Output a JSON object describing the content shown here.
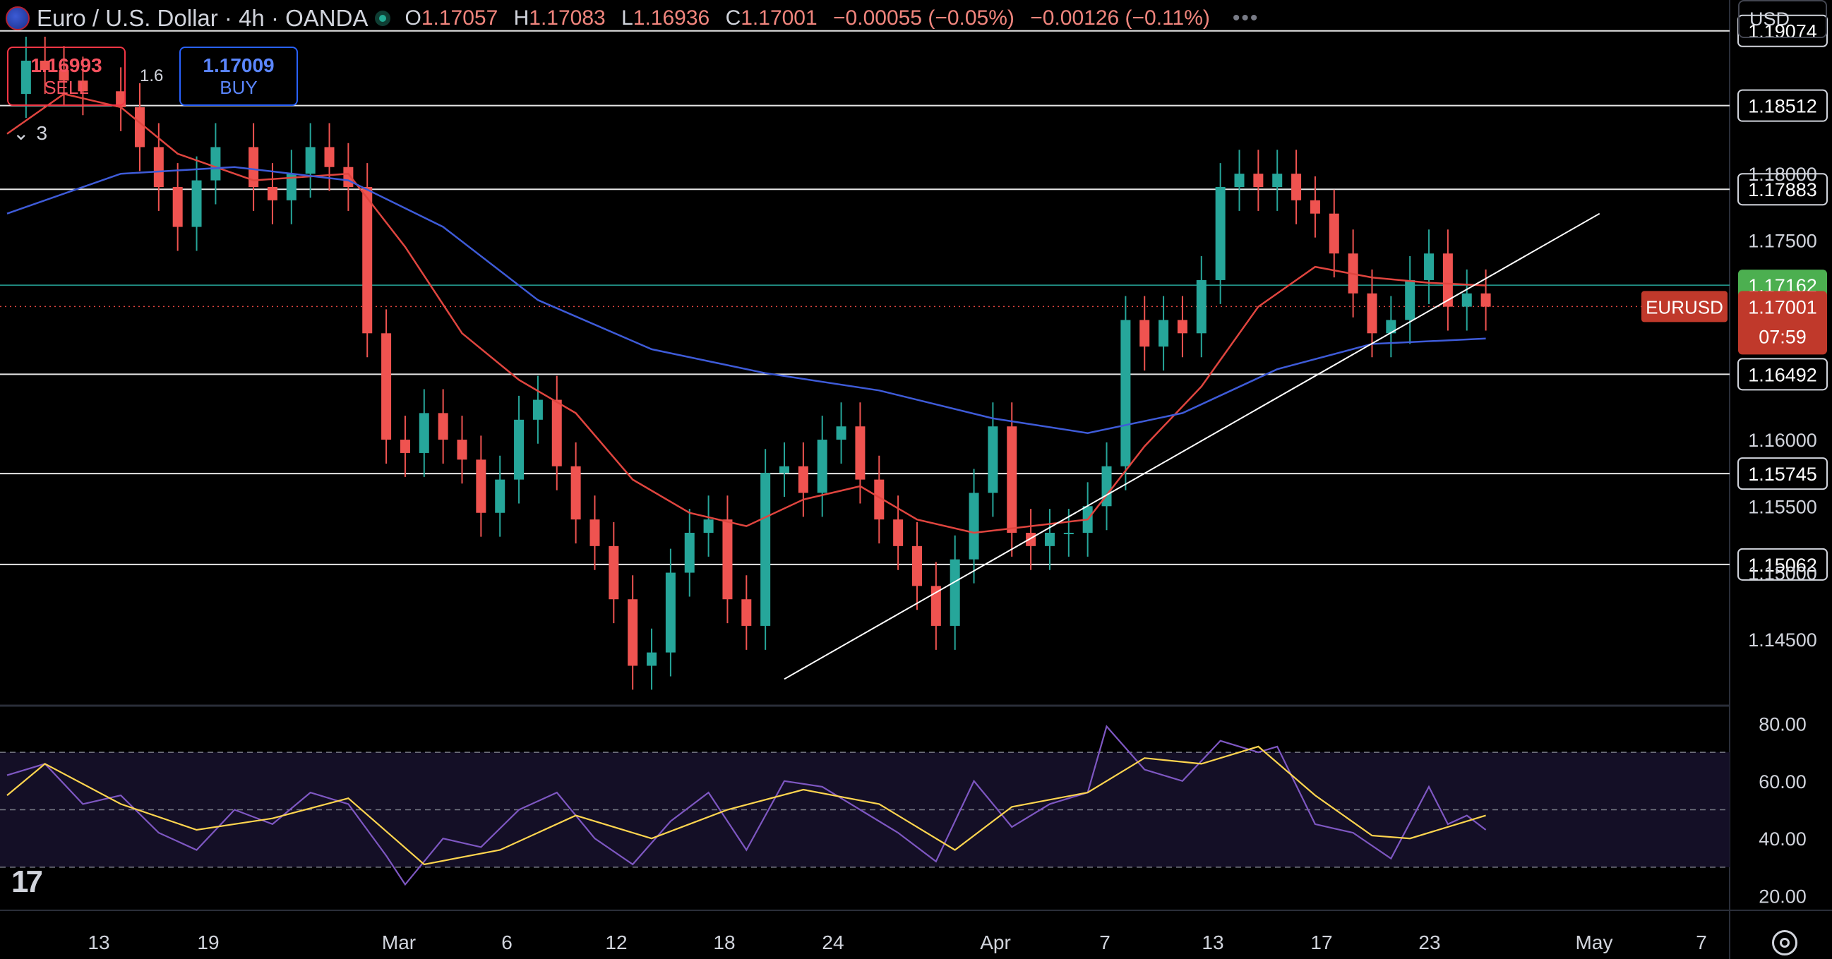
{
  "header": {
    "symbol_title": "Euro / U.S. Dollar · 4h · OANDA",
    "ohlc": [
      {
        "k": "O",
        "v": "1.17057"
      },
      {
        "k": "H",
        "v": "1.17083"
      },
      {
        "k": "L",
        "v": "1.16936"
      },
      {
        "k": "C",
        "v": "1.17001"
      }
    ],
    "change": "−0.00055 (−0.05%)",
    "change2": "−0.00126 (−0.11%)",
    "more": "•••"
  },
  "trade": {
    "sell_price": "1.16993",
    "sell_label": "SELL",
    "buy_price": "1.17009",
    "buy_label": "BUY",
    "spread": "1.6"
  },
  "collapse_count": "3",
  "currency": "USD",
  "colors": {
    "up": "#26a69a",
    "down": "#ef5350",
    "ma_fast": "#e0453f",
    "ma_slow": "#3e5bd8",
    "rsi": "#7e57c2",
    "rsi_ma": "#ffd54f",
    "last_price": "#c0392b",
    "green_line": "#26a69a"
  },
  "chart_data": [
    {
      "type": "candlestick",
      "ylim": [
        1.14,
        1.192
      ],
      "price_ticks": [
        "1.14500",
        "1.15000",
        "1.15500",
        "1.16000",
        "1.17500",
        "1.18000"
      ],
      "time_ticks": [
        "13",
        "19",
        "Mar",
        "6",
        "12",
        "18",
        "24",
        "Apr",
        "7",
        "13",
        "17",
        "23",
        "May",
        "7"
      ],
      "horizontal_levels": [
        1.19074,
        1.18512,
        1.17883,
        1.16492,
        1.15745,
        1.15062
      ],
      "level_labels": [
        "1.19074",
        "1.18512",
        "1.17883",
        "1.16492",
        "1.15745",
        "1.15062"
      ],
      "highlight_level": {
        "value": 1.17162,
        "label": "1.17162"
      },
      "last_price": {
        "value": 1.17001,
        "label": "1.17001",
        "countdown": "07:59",
        "symbol": "EURUSD"
      },
      "trendline": [
        {
          "date": "2025-03-23",
          "y": 1.142
        },
        {
          "date": "2025-05-05",
          "y": 1.177
        }
      ],
      "close_series": [
        {
          "date": "2025-02-10",
          "y": 1.186
        },
        {
          "date": "2025-02-11",
          "y": 1.1885
        },
        {
          "date": "2025-02-12",
          "y": 1.1878
        },
        {
          "date": "2025-02-13",
          "y": 1.187
        },
        {
          "date": "2025-02-14",
          "y": 1.1862
        },
        {
          "date": "2025-02-16",
          "y": 1.185
        },
        {
          "date": "2025-02-17",
          "y": 1.182
        },
        {
          "date": "2025-02-18",
          "y": 1.179
        },
        {
          "date": "2025-02-19",
          "y": 1.176
        },
        {
          "date": "2025-02-20",
          "y": 1.1795
        },
        {
          "date": "2025-02-21",
          "y": 1.182
        },
        {
          "date": "2025-02-23",
          "y": 1.179
        },
        {
          "date": "2025-02-24",
          "y": 1.178
        },
        {
          "date": "2025-02-25",
          "y": 1.18
        },
        {
          "date": "2025-02-26",
          "y": 1.182
        },
        {
          "date": "2025-02-27",
          "y": 1.1805
        },
        {
          "date": "2025-02-28",
          "y": 1.179
        },
        {
          "date": "2025-03-01",
          "y": 1.168
        },
        {
          "date": "2025-03-02",
          "y": 1.16
        },
        {
          "date": "2025-03-03",
          "y": 1.159
        },
        {
          "date": "2025-03-04",
          "y": 1.162
        },
        {
          "date": "2025-03-05",
          "y": 1.16
        },
        {
          "date": "2025-03-06",
          "y": 1.1585
        },
        {
          "date": "2025-03-07",
          "y": 1.1545
        },
        {
          "date": "2025-03-08",
          "y": 1.157
        },
        {
          "date": "2025-03-09",
          "y": 1.1615
        },
        {
          "date": "2025-03-10",
          "y": 1.163
        },
        {
          "date": "2025-03-11",
          "y": 1.158
        },
        {
          "date": "2025-03-12",
          "y": 1.154
        },
        {
          "date": "2025-03-13",
          "y": 1.152
        },
        {
          "date": "2025-03-14",
          "y": 1.148
        },
        {
          "date": "2025-03-15",
          "y": 1.143
        },
        {
          "date": "2025-03-16",
          "y": 1.144
        },
        {
          "date": "2025-03-17",
          "y": 1.15
        },
        {
          "date": "2025-03-18",
          "y": 1.153
        },
        {
          "date": "2025-03-19",
          "y": 1.154
        },
        {
          "date": "2025-03-20",
          "y": 1.148
        },
        {
          "date": "2025-03-21",
          "y": 1.146
        },
        {
          "date": "2025-03-22",
          "y": 1.1575
        },
        {
          "date": "2025-03-23",
          "y": 1.158
        },
        {
          "date": "2025-03-24",
          "y": 1.156
        },
        {
          "date": "2025-03-25",
          "y": 1.16
        },
        {
          "date": "2025-03-26",
          "y": 1.161
        },
        {
          "date": "2025-03-27",
          "y": 1.157
        },
        {
          "date": "2025-03-28",
          "y": 1.154
        },
        {
          "date": "2025-03-29",
          "y": 1.152
        },
        {
          "date": "2025-03-30",
          "y": 1.149
        },
        {
          "date": "2025-03-31",
          "y": 1.146
        },
        {
          "date": "2025-04-01",
          "y": 1.151
        },
        {
          "date": "2025-04-02",
          "y": 1.156
        },
        {
          "date": "2025-04-03",
          "y": 1.161
        },
        {
          "date": "2025-04-04",
          "y": 1.153
        },
        {
          "date": "2025-04-05",
          "y": 1.152
        },
        {
          "date": "2025-04-06",
          "y": 1.153
        },
        {
          "date": "2025-04-07",
          "y": 1.153
        },
        {
          "date": "2025-04-08",
          "y": 1.155
        },
        {
          "date": "2025-04-09",
          "y": 1.158
        },
        {
          "date": "2025-04-10",
          "y": 1.169
        },
        {
          "date": "2025-04-11",
          "y": 1.167
        },
        {
          "date": "2025-04-12",
          "y": 1.169
        },
        {
          "date": "2025-04-13",
          "y": 1.168
        },
        {
          "date": "2025-04-14",
          "y": 1.172
        },
        {
          "date": "2025-04-15",
          "y": 1.179
        },
        {
          "date": "2025-04-16",
          "y": 1.18
        },
        {
          "date": "2025-04-17",
          "y": 1.179
        },
        {
          "date": "2025-04-18",
          "y": 1.18
        },
        {
          "date": "2025-04-19",
          "y": 1.178
        },
        {
          "date": "2025-04-20",
          "y": 1.177
        },
        {
          "date": "2025-04-21",
          "y": 1.174
        },
        {
          "date": "2025-04-22",
          "y": 1.171
        },
        {
          "date": "2025-04-23",
          "y": 1.168
        },
        {
          "date": "2025-04-24",
          "y": 1.169
        },
        {
          "date": "2025-04-25",
          "y": 1.172
        },
        {
          "date": "2025-04-26",
          "y": 1.174
        },
        {
          "date": "2025-04-27",
          "y": 1.17
        },
        {
          "date": "2025-04-28",
          "y": 1.171
        },
        {
          "date": "2025-04-29",
          "y": 1.17
        }
      ],
      "ma_fast": [
        {
          "date": "2025-02-10",
          "y": 1.183
        },
        {
          "date": "2025-02-13",
          "y": 1.186
        },
        {
          "date": "2025-02-16",
          "y": 1.185
        },
        {
          "date": "2025-02-19",
          "y": 1.1815
        },
        {
          "date": "2025-02-23",
          "y": 1.1795
        },
        {
          "date": "2025-02-28",
          "y": 1.18
        },
        {
          "date": "2025-03-03",
          "y": 1.1745
        },
        {
          "date": "2025-03-06",
          "y": 1.168
        },
        {
          "date": "2025-03-09",
          "y": 1.1645
        },
        {
          "date": "2025-03-12",
          "y": 1.162
        },
        {
          "date": "2025-03-15",
          "y": 1.157
        },
        {
          "date": "2025-03-18",
          "y": 1.1545
        },
        {
          "date": "2025-03-21",
          "y": 1.1535
        },
        {
          "date": "2025-03-24",
          "y": 1.1555
        },
        {
          "date": "2025-03-27",
          "y": 1.1565
        },
        {
          "date": "2025-03-30",
          "y": 1.154
        },
        {
          "date": "2025-04-02",
          "y": 1.153
        },
        {
          "date": "2025-04-05",
          "y": 1.1535
        },
        {
          "date": "2025-04-08",
          "y": 1.154
        },
        {
          "date": "2025-04-11",
          "y": 1.1595
        },
        {
          "date": "2025-04-14",
          "y": 1.164
        },
        {
          "date": "2025-04-17",
          "y": 1.17
        },
        {
          "date": "2025-04-20",
          "y": 1.173
        },
        {
          "date": "2025-04-23",
          "y": 1.1722
        },
        {
          "date": "2025-04-26",
          "y": 1.1718
        },
        {
          "date": "2025-04-29",
          "y": 1.1716
        }
      ],
      "ma_slow": [
        {
          "date": "2025-02-10",
          "y": 1.177
        },
        {
          "date": "2025-02-16",
          "y": 1.18
        },
        {
          "date": "2025-02-22",
          "y": 1.1805
        },
        {
          "date": "2025-02-28",
          "y": 1.1795
        },
        {
          "date": "2025-03-05",
          "y": 1.176
        },
        {
          "date": "2025-03-10",
          "y": 1.1705
        },
        {
          "date": "2025-03-16",
          "y": 1.1668
        },
        {
          "date": "2025-03-22",
          "y": 1.165
        },
        {
          "date": "2025-03-28",
          "y": 1.1637
        },
        {
          "date": "2025-04-03",
          "y": 1.1616
        },
        {
          "date": "2025-04-08",
          "y": 1.1605
        },
        {
          "date": "2025-04-13",
          "y": 1.162
        },
        {
          "date": "2025-04-18",
          "y": 1.1653
        },
        {
          "date": "2025-04-23",
          "y": 1.1672
        },
        {
          "date": "2025-04-29",
          "y": 1.1676
        }
      ]
    },
    {
      "type": "line",
      "ylim": [
        15,
        85
      ],
      "ticks": [
        "80.00",
        "60.00",
        "40.00",
        "20.00"
      ],
      "band": [
        30,
        70
      ],
      "midline": 50,
      "rsi": [
        {
          "date": "2025-02-10",
          "y": 62
        },
        {
          "date": "2025-02-12",
          "y": 66
        },
        {
          "date": "2025-02-14",
          "y": 52
        },
        {
          "date": "2025-02-16",
          "y": 55
        },
        {
          "date": "2025-02-18",
          "y": 42
        },
        {
          "date": "2025-02-20",
          "y": 36
        },
        {
          "date": "2025-02-22",
          "y": 50
        },
        {
          "date": "2025-02-24",
          "y": 45
        },
        {
          "date": "2025-02-26",
          "y": 56
        },
        {
          "date": "2025-02-28",
          "y": 52
        },
        {
          "date": "2025-03-02",
          "y": 34
        },
        {
          "date": "2025-03-03",
          "y": 24
        },
        {
          "date": "2025-03-05",
          "y": 40
        },
        {
          "date": "2025-03-07",
          "y": 37
        },
        {
          "date": "2025-03-09",
          "y": 50
        },
        {
          "date": "2025-03-11",
          "y": 56
        },
        {
          "date": "2025-03-13",
          "y": 40
        },
        {
          "date": "2025-03-15",
          "y": 31
        },
        {
          "date": "2025-03-17",
          "y": 46
        },
        {
          "date": "2025-03-19",
          "y": 56
        },
        {
          "date": "2025-03-21",
          "y": 36
        },
        {
          "date": "2025-03-23",
          "y": 60
        },
        {
          "date": "2025-03-25",
          "y": 58
        },
        {
          "date": "2025-03-27",
          "y": 50
        },
        {
          "date": "2025-03-29",
          "y": 42
        },
        {
          "date": "2025-03-31",
          "y": 32
        },
        {
          "date": "2025-04-02",
          "y": 60
        },
        {
          "date": "2025-04-04",
          "y": 44
        },
        {
          "date": "2025-04-06",
          "y": 52
        },
        {
          "date": "2025-04-08",
          "y": 56
        },
        {
          "date": "2025-04-09",
          "y": 79
        },
        {
          "date": "2025-04-11",
          "y": 64
        },
        {
          "date": "2025-04-13",
          "y": 60
        },
        {
          "date": "2025-04-15",
          "y": 74
        },
        {
          "date": "2025-04-17",
          "y": 70
        },
        {
          "date": "2025-04-18",
          "y": 72
        },
        {
          "date": "2025-04-20",
          "y": 45
        },
        {
          "date": "2025-04-22",
          "y": 42
        },
        {
          "date": "2025-04-24",
          "y": 33
        },
        {
          "date": "2025-04-26",
          "y": 58
        },
        {
          "date": "2025-04-27",
          "y": 45
        },
        {
          "date": "2025-04-28",
          "y": 48
        },
        {
          "date": "2025-04-29",
          "y": 43
        }
      ],
      "rsi_ma": [
        {
          "date": "2025-02-10",
          "y": 55
        },
        {
          "date": "2025-02-12",
          "y": 66
        },
        {
          "date": "2025-02-16",
          "y": 52
        },
        {
          "date": "2025-02-20",
          "y": 43
        },
        {
          "date": "2025-02-24",
          "y": 47
        },
        {
          "date": "2025-02-28",
          "y": 54
        },
        {
          "date": "2025-03-04",
          "y": 31
        },
        {
          "date": "2025-03-08",
          "y": 36
        },
        {
          "date": "2025-03-12",
          "y": 48
        },
        {
          "date": "2025-03-16",
          "y": 40
        },
        {
          "date": "2025-03-20",
          "y": 50
        },
        {
          "date": "2025-03-24",
          "y": 57
        },
        {
          "date": "2025-03-28",
          "y": 52
        },
        {
          "date": "2025-04-01",
          "y": 36
        },
        {
          "date": "2025-04-04",
          "y": 51
        },
        {
          "date": "2025-04-08",
          "y": 56
        },
        {
          "date": "2025-04-11",
          "y": 68
        },
        {
          "date": "2025-04-14",
          "y": 66
        },
        {
          "date": "2025-04-17",
          "y": 72
        },
        {
          "date": "2025-04-20",
          "y": 55
        },
        {
          "date": "2025-04-23",
          "y": 41
        },
        {
          "date": "2025-04-25",
          "y": 40
        },
        {
          "date": "2025-04-29",
          "y": 48
        }
      ]
    }
  ]
}
